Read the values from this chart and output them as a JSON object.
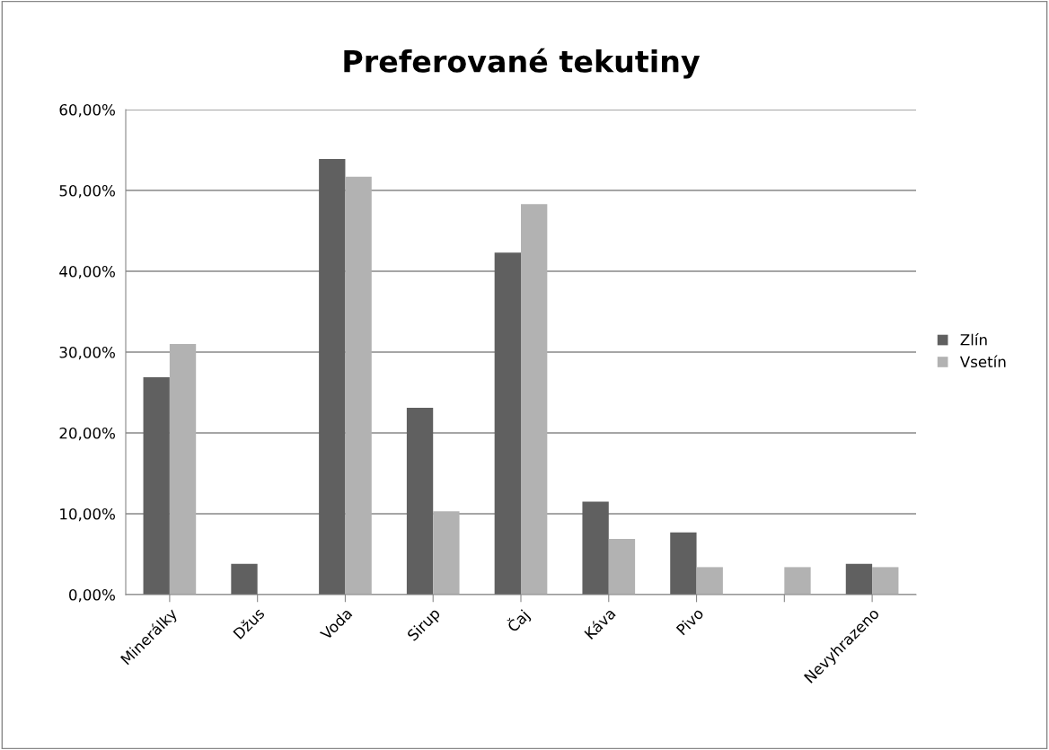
{
  "chart_data": {
    "type": "bar",
    "title": "Preferované tekutiny",
    "categories": [
      "Minerálky",
      "Džus",
      "Voda",
      "Sirup",
      "Čaj",
      "Káva",
      "Pivo",
      null,
      "Nevyhrazeno"
    ],
    "series": [
      {
        "name": "Zlín",
        "color": "#606060",
        "values": [
          26.9,
          3.8,
          53.9,
          23.1,
          42.3,
          11.5,
          7.7,
          0,
          3.8
        ]
      },
      {
        "name": "Vsetín",
        "color": "#b2b2b2",
        "values": [
          31.0,
          0,
          51.7,
          10.3,
          48.3,
          6.9,
          3.4,
          3.4,
          3.4
        ]
      }
    ],
    "ylim": [
      0,
      60
    ],
    "yticks": [
      {
        "value": 0,
        "label": "0,00%"
      },
      {
        "value": 10,
        "label": "10,00%"
      },
      {
        "value": 20,
        "label": "20,00%"
      },
      {
        "value": 30,
        "label": "30,00%"
      },
      {
        "value": 40,
        "label": "40,00%"
      },
      {
        "value": 50,
        "label": "50,00%"
      },
      {
        "value": 60,
        "label": "60,00%"
      }
    ],
    "grid": "y",
    "legend": "right"
  }
}
